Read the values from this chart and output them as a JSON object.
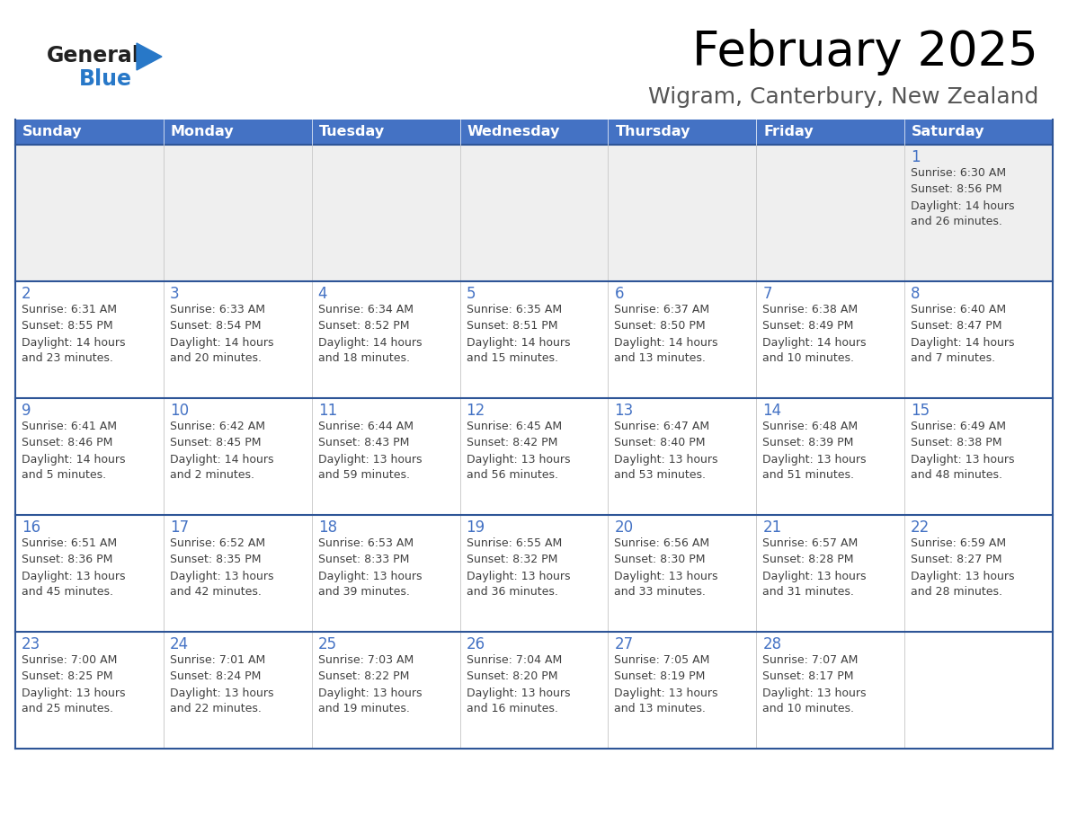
{
  "title": "February 2025",
  "subtitle": "Wigram, Canterbury, New Zealand",
  "days_of_week": [
    "Sunday",
    "Monday",
    "Tuesday",
    "Wednesday",
    "Thursday",
    "Friday",
    "Saturday"
  ],
  "header_bg": "#4472C4",
  "header_text": "#FFFFFF",
  "cell_bg_row0": "#EFEFEF",
  "cell_bg_other": "#FFFFFF",
  "row_border_color": "#2E5597",
  "col_border_color": "#CCCCCC",
  "outer_border_color": "#2E5597",
  "day_num_color": "#4472C4",
  "text_color": "#404040",
  "title_color": "#000000",
  "subtitle_color": "#555555",
  "logo_general_color": "#222222",
  "logo_blue_color": "#2878C8",
  "logo_triangle_color": "#2878C8",
  "calendar_data": [
    [
      null,
      null,
      null,
      null,
      null,
      null,
      {
        "day": 1,
        "sunrise": "6:30 AM",
        "sunset": "8:56 PM",
        "daylight": "14 hours and 26 minutes."
      }
    ],
    [
      {
        "day": 2,
        "sunrise": "6:31 AM",
        "sunset": "8:55 PM",
        "daylight": "14 hours and 23 minutes."
      },
      {
        "day": 3,
        "sunrise": "6:33 AM",
        "sunset": "8:54 PM",
        "daylight": "14 hours and 20 minutes."
      },
      {
        "day": 4,
        "sunrise": "6:34 AM",
        "sunset": "8:52 PM",
        "daylight": "14 hours and 18 minutes."
      },
      {
        "day": 5,
        "sunrise": "6:35 AM",
        "sunset": "8:51 PM",
        "daylight": "14 hours and 15 minutes."
      },
      {
        "day": 6,
        "sunrise": "6:37 AM",
        "sunset": "8:50 PM",
        "daylight": "14 hours and 13 minutes."
      },
      {
        "day": 7,
        "sunrise": "6:38 AM",
        "sunset": "8:49 PM",
        "daylight": "14 hours and 10 minutes."
      },
      {
        "day": 8,
        "sunrise": "6:40 AM",
        "sunset": "8:47 PM",
        "daylight": "14 hours and 7 minutes."
      }
    ],
    [
      {
        "day": 9,
        "sunrise": "6:41 AM",
        "sunset": "8:46 PM",
        "daylight": "14 hours and 5 minutes."
      },
      {
        "day": 10,
        "sunrise": "6:42 AM",
        "sunset": "8:45 PM",
        "daylight": "14 hours and 2 minutes."
      },
      {
        "day": 11,
        "sunrise": "6:44 AM",
        "sunset": "8:43 PM",
        "daylight": "13 hours and 59 minutes."
      },
      {
        "day": 12,
        "sunrise": "6:45 AM",
        "sunset": "8:42 PM",
        "daylight": "13 hours and 56 minutes."
      },
      {
        "day": 13,
        "sunrise": "6:47 AM",
        "sunset": "8:40 PM",
        "daylight": "13 hours and 53 minutes."
      },
      {
        "day": 14,
        "sunrise": "6:48 AM",
        "sunset": "8:39 PM",
        "daylight": "13 hours and 51 minutes."
      },
      {
        "day": 15,
        "sunrise": "6:49 AM",
        "sunset": "8:38 PM",
        "daylight": "13 hours and 48 minutes."
      }
    ],
    [
      {
        "day": 16,
        "sunrise": "6:51 AM",
        "sunset": "8:36 PM",
        "daylight": "13 hours and 45 minutes."
      },
      {
        "day": 17,
        "sunrise": "6:52 AM",
        "sunset": "8:35 PM",
        "daylight": "13 hours and 42 minutes."
      },
      {
        "day": 18,
        "sunrise": "6:53 AM",
        "sunset": "8:33 PM",
        "daylight": "13 hours and 39 minutes."
      },
      {
        "day": 19,
        "sunrise": "6:55 AM",
        "sunset": "8:32 PM",
        "daylight": "13 hours and 36 minutes."
      },
      {
        "day": 20,
        "sunrise": "6:56 AM",
        "sunset": "8:30 PM",
        "daylight": "13 hours and 33 minutes."
      },
      {
        "day": 21,
        "sunrise": "6:57 AM",
        "sunset": "8:28 PM",
        "daylight": "13 hours and 31 minutes."
      },
      {
        "day": 22,
        "sunrise": "6:59 AM",
        "sunset": "8:27 PM",
        "daylight": "13 hours and 28 minutes."
      }
    ],
    [
      {
        "day": 23,
        "sunrise": "7:00 AM",
        "sunset": "8:25 PM",
        "daylight": "13 hours and 25 minutes."
      },
      {
        "day": 24,
        "sunrise": "7:01 AM",
        "sunset": "8:24 PM",
        "daylight": "13 hours and 22 minutes."
      },
      {
        "day": 25,
        "sunrise": "7:03 AM",
        "sunset": "8:22 PM",
        "daylight": "13 hours and 19 minutes."
      },
      {
        "day": 26,
        "sunrise": "7:04 AM",
        "sunset": "8:20 PM",
        "daylight": "13 hours and 16 minutes."
      },
      {
        "day": 27,
        "sunrise": "7:05 AM",
        "sunset": "8:19 PM",
        "daylight": "13 hours and 13 minutes."
      },
      {
        "day": 28,
        "sunrise": "7:07 AM",
        "sunset": "8:17 PM",
        "daylight": "13 hours and 10 minutes."
      },
      null
    ]
  ]
}
